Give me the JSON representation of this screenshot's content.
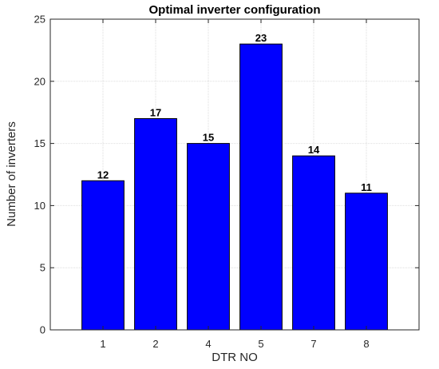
{
  "chart_data": {
    "type": "bar",
    "title": "Optimal inverter configuration",
    "xlabel": "DTR NO",
    "ylabel": "Number of inverters",
    "categories": [
      "1",
      "2",
      "4",
      "5",
      "7",
      "8"
    ],
    "values": [
      12,
      17,
      15,
      23,
      14,
      11
    ],
    "data_labels": [
      "12",
      "17",
      "15",
      "23",
      "14",
      "11"
    ],
    "ylim": [
      0,
      25
    ],
    "yticks": [
      "0",
      "5",
      "10",
      "15",
      "20",
      "25"
    ],
    "grid": true,
    "bar_color": "#0000FF",
    "bar_edge_color": "#000000"
  }
}
